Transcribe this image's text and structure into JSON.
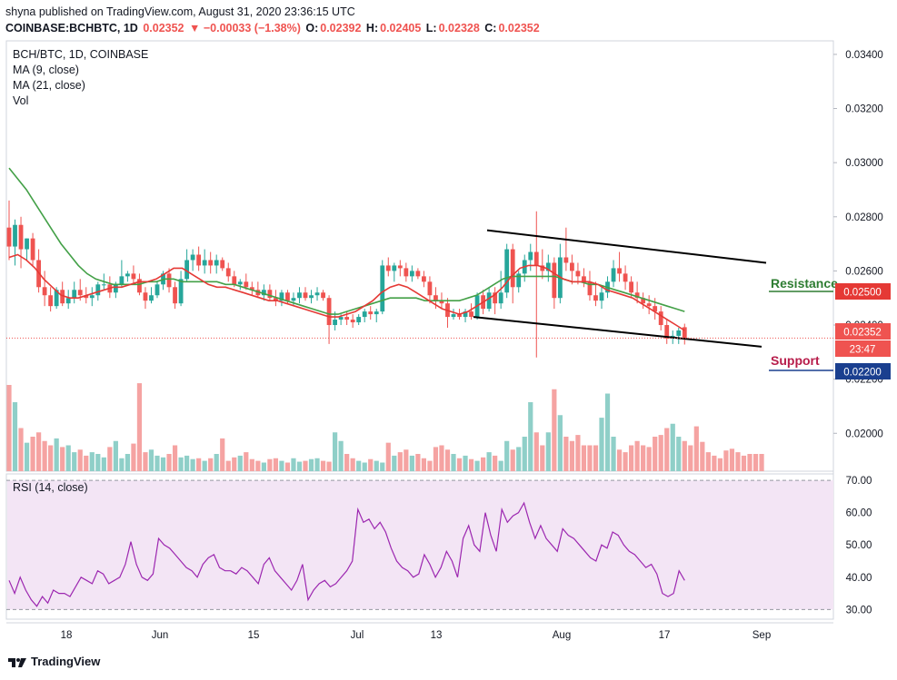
{
  "header": {
    "publish_line": "shyna published on TradingView.com, August 31, 2020 23:36:15 UTC",
    "symbol": "COINBASE:BCHBTC, 1D",
    "last": "0.02352",
    "change": "▼ −0.00033 (−1.38%)",
    "open_label": "O:",
    "open": "0.02392",
    "high_label": "H:",
    "high": "0.02405",
    "low_label": "L:",
    "low": "0.02328",
    "close_label": "C:",
    "close": "0.02352"
  },
  "legend": {
    "title": "BCH/BTC, 1D, COINBASE",
    "ma9": "MA (9, close)",
    "ma21": "MA (21, close)",
    "vol": "Vol",
    "rsi": "RSI (14, close)"
  },
  "annotations": {
    "resistance": "Resistance",
    "support": "Support",
    "resistance_price": "0.02500",
    "support_price": "0.02200",
    "last_price": "0.02352",
    "countdown": "23:47"
  },
  "footer": {
    "brand": "TradingView"
  },
  "colors": {
    "up": "#26a69a",
    "down": "#ef5350",
    "ma9": "#e53935",
    "ma21": "#43a047",
    "rsi_line": "#9c27b0",
    "rsi_band": "#f3e5f5",
    "resistance": "#2e7d32",
    "support": "#b71c4a",
    "resistance_tag": "#e53935",
    "support_tag": "#1a3f8f"
  },
  "chart_data": {
    "type": "candlestick",
    "x_ticks": [
      "18",
      "Jun",
      "15",
      "Jul",
      "13",
      "Aug",
      "17",
      "Sep"
    ],
    "price_ticks": [
      "0.03400",
      "0.03200",
      "0.03000",
      "0.02800",
      "0.02600",
      "0.02400",
      "0.02200",
      "0.02000"
    ],
    "price_range": [
      0.0186,
      0.0345
    ],
    "rsi_ticks": [
      "70.00",
      "60.00",
      "50.00",
      "40.00",
      "30.00"
    ],
    "rsi_range": [
      27,
      72
    ],
    "rsi_band": [
      30,
      70
    ],
    "candles_ohlc": [
      [
        0.0276,
        0.0286,
        0.0264,
        0.0269
      ],
      [
        0.0269,
        0.0279,
        0.0262,
        0.0277
      ],
      [
        0.0277,
        0.028,
        0.0261,
        0.0268
      ],
      [
        0.0268,
        0.0272,
        0.0264,
        0.0272
      ],
      [
        0.0272,
        0.0274,
        0.0262,
        0.0264
      ],
      [
        0.0264,
        0.0268,
        0.0252,
        0.0254
      ],
      [
        0.0254,
        0.026,
        0.0247,
        0.0251
      ],
      [
        0.0251,
        0.0254,
        0.0245,
        0.0247
      ],
      [
        0.0247,
        0.0254,
        0.0246,
        0.0253
      ],
      [
        0.0253,
        0.0256,
        0.0247,
        0.0248
      ],
      [
        0.0248,
        0.0253,
        0.0246,
        0.025
      ],
      [
        0.025,
        0.0256,
        0.0248,
        0.0253
      ],
      [
        0.0253,
        0.0257,
        0.0249,
        0.0251
      ],
      [
        0.0251,
        0.0254,
        0.0248,
        0.025
      ],
      [
        0.025,
        0.0254,
        0.0247,
        0.0251
      ],
      [
        0.0251,
        0.0256,
        0.0249,
        0.0255
      ],
      [
        0.0255,
        0.0259,
        0.0253,
        0.0255
      ],
      [
        0.0255,
        0.0258,
        0.025,
        0.0252
      ],
      [
        0.0252,
        0.0256,
        0.025,
        0.0255
      ],
      [
        0.0255,
        0.0264,
        0.0254,
        0.0258
      ],
      [
        0.0258,
        0.026,
        0.0256,
        0.0259
      ],
      [
        0.0259,
        0.0262,
        0.0255,
        0.0257
      ],
      [
        0.0257,
        0.0259,
        0.0251,
        0.0252
      ],
      [
        0.0252,
        0.0254,
        0.0246,
        0.0249
      ],
      [
        0.0249,
        0.0254,
        0.0248,
        0.0251
      ],
      [
        0.0251,
        0.0256,
        0.025,
        0.0255
      ],
      [
        0.0255,
        0.026,
        0.0253,
        0.0259
      ],
      [
        0.0259,
        0.0261,
        0.0252,
        0.0254
      ],
      [
        0.0254,
        0.0256,
        0.0246,
        0.0248
      ],
      [
        0.0248,
        0.026,
        0.0247,
        0.0257
      ],
      [
        0.0257,
        0.0268,
        0.0256,
        0.0264
      ],
      [
        0.0264,
        0.0268,
        0.026,
        0.0266
      ],
      [
        0.0266,
        0.0269,
        0.026,
        0.0262
      ],
      [
        0.0262,
        0.0268,
        0.0259,
        0.0264
      ],
      [
        0.0264,
        0.0267,
        0.0259,
        0.0262
      ],
      [
        0.0262,
        0.0266,
        0.0259,
        0.0264
      ],
      [
        0.0264,
        0.0265,
        0.026,
        0.0261
      ],
      [
        0.0261,
        0.0263,
        0.0256,
        0.0258
      ],
      [
        0.0258,
        0.026,
        0.0254,
        0.0255
      ],
      [
        0.0255,
        0.0257,
        0.0253,
        0.0256
      ],
      [
        0.0256,
        0.0259,
        0.0253,
        0.0254
      ],
      [
        0.0254,
        0.0256,
        0.0251,
        0.0253
      ],
      [
        0.0253,
        0.0256,
        0.025,
        0.0251
      ],
      [
        0.0251,
        0.0255,
        0.0249,
        0.0253
      ],
      [
        0.0253,
        0.0255,
        0.0249,
        0.025
      ],
      [
        0.025,
        0.0253,
        0.0247,
        0.0249
      ],
      [
        0.0249,
        0.0253,
        0.0247,
        0.0252
      ],
      [
        0.0252,
        0.0253,
        0.0248,
        0.0249
      ],
      [
        0.0249,
        0.0252,
        0.0247,
        0.025
      ],
      [
        0.025,
        0.0254,
        0.0248,
        0.0252
      ],
      [
        0.0252,
        0.0254,
        0.0249,
        0.025
      ],
      [
        0.025,
        0.0253,
        0.0248,
        0.0251
      ],
      [
        0.0251,
        0.0254,
        0.0249,
        0.0252
      ],
      [
        0.0252,
        0.0253,
        0.0249,
        0.025
      ],
      [
        0.025,
        0.0251,
        0.0233,
        0.024
      ],
      [
        0.024,
        0.0245,
        0.0238,
        0.0242
      ],
      [
        0.0242,
        0.0244,
        0.024,
        0.0243
      ],
      [
        0.0243,
        0.0245,
        0.024,
        0.0242
      ],
      [
        0.0242,
        0.0244,
        0.0239,
        0.0241
      ],
      [
        0.0241,
        0.0244,
        0.024,
        0.0243
      ],
      [
        0.0243,
        0.0246,
        0.0241,
        0.0245
      ],
      [
        0.0245,
        0.0247,
        0.0242,
        0.0244
      ],
      [
        0.0244,
        0.0246,
        0.0241,
        0.0245
      ],
      [
        0.0245,
        0.0264,
        0.0244,
        0.0262
      ],
      [
        0.0262,
        0.0265,
        0.0258,
        0.026
      ],
      [
        0.026,
        0.0263,
        0.0256,
        0.0262
      ],
      [
        0.0262,
        0.0264,
        0.0258,
        0.0261
      ],
      [
        0.0261,
        0.0263,
        0.0256,
        0.0258
      ],
      [
        0.0258,
        0.0262,
        0.0256,
        0.026
      ],
      [
        0.026,
        0.0261,
        0.0257,
        0.0258
      ],
      [
        0.0258,
        0.026,
        0.0254,
        0.0256
      ],
      [
        0.0256,
        0.0258,
        0.0248,
        0.0251
      ],
      [
        0.0251,
        0.0254,
        0.0246,
        0.0249
      ],
      [
        0.0249,
        0.0252,
        0.0246,
        0.0248
      ],
      [
        0.0248,
        0.025,
        0.0239,
        0.0243
      ],
      [
        0.0243,
        0.0246,
        0.0242,
        0.0244
      ],
      [
        0.0244,
        0.0246,
        0.0242,
        0.0243
      ],
      [
        0.0243,
        0.0246,
        0.0241,
        0.0245
      ],
      [
        0.0245,
        0.0248,
        0.0242,
        0.0243
      ],
      [
        0.0243,
        0.0252,
        0.0242,
        0.0251
      ],
      [
        0.0251,
        0.0253,
        0.0244,
        0.0246
      ],
      [
        0.0246,
        0.0254,
        0.0245,
        0.0252
      ],
      [
        0.0252,
        0.0254,
        0.0244,
        0.0248
      ],
      [
        0.0248,
        0.026,
        0.0246,
        0.0252
      ],
      [
        0.0252,
        0.027,
        0.025,
        0.0268
      ],
      [
        0.0268,
        0.027,
        0.0248,
        0.0254
      ],
      [
        0.0254,
        0.026,
        0.0252,
        0.0259
      ],
      [
        0.0259,
        0.0266,
        0.0256,
        0.0264
      ],
      [
        0.0264,
        0.027,
        0.026,
        0.0267
      ],
      [
        0.0267,
        0.0282,
        0.0228,
        0.0262
      ],
      [
        0.0262,
        0.0268,
        0.0257,
        0.026
      ],
      [
        0.026,
        0.0266,
        0.0256,
        0.0263
      ],
      [
        0.0263,
        0.0265,
        0.0246,
        0.025
      ],
      [
        0.025,
        0.027,
        0.0248,
        0.0265
      ],
      [
        0.0265,
        0.0276,
        0.026,
        0.0263
      ],
      [
        0.0263,
        0.0266,
        0.0255,
        0.026
      ],
      [
        0.026,
        0.0263,
        0.0255,
        0.0258
      ],
      [
        0.0258,
        0.0261,
        0.0254,
        0.0256
      ],
      [
        0.0256,
        0.026,
        0.0249,
        0.0251
      ],
      [
        0.0251,
        0.0256,
        0.0247,
        0.0249
      ],
      [
        0.0249,
        0.0254,
        0.0246,
        0.0252
      ],
      [
        0.0252,
        0.0258,
        0.025,
        0.0256
      ],
      [
        0.0256,
        0.0264,
        0.0254,
        0.0261
      ],
      [
        0.0261,
        0.0267,
        0.0256,
        0.0259
      ],
      [
        0.0259,
        0.0262,
        0.0253,
        0.0256
      ],
      [
        0.0256,
        0.0258,
        0.025,
        0.0252
      ],
      [
        0.0252,
        0.0256,
        0.0248,
        0.025
      ],
      [
        0.025,
        0.0252,
        0.0246,
        0.0248
      ],
      [
        0.0248,
        0.0251,
        0.0244,
        0.0247
      ],
      [
        0.0247,
        0.025,
        0.0242,
        0.0245
      ],
      [
        0.0245,
        0.0247,
        0.0238,
        0.024
      ],
      [
        0.024,
        0.0242,
        0.0233,
        0.0235
      ],
      [
        0.0235,
        0.0238,
        0.0233,
        0.0236
      ],
      [
        0.0236,
        0.0239,
        0.0233,
        0.0238
      ],
      [
        0.02392,
        0.02405,
        0.02328,
        0.02352
      ]
    ],
    "ma9": [
      0.0265,
      0.0266,
      0.0264,
      0.0261,
      0.0257,
      0.0254,
      0.0251,
      0.025,
      0.025,
      0.0251,
      0.0252,
      0.0253,
      0.0254,
      0.0254,
      0.0255,
      0.0256,
      0.0256,
      0.0257,
      0.0259,
      0.0261,
      0.0261,
      0.0259,
      0.0257,
      0.0255,
      0.0254,
      0.0254,
      0.0253,
      0.0252,
      0.0251,
      0.025,
      0.0249,
      0.0249,
      0.0248,
      0.0247,
      0.0246,
      0.0245,
      0.0244,
      0.0243,
      0.0243,
      0.0244,
      0.0245,
      0.0247,
      0.0249,
      0.0252,
      0.0254,
      0.0255,
      0.0254,
      0.0252,
      0.025,
      0.0248,
      0.0246,
      0.0245,
      0.0244,
      0.0245,
      0.0247,
      0.0249,
      0.0251,
      0.0254,
      0.0258,
      0.0261,
      0.0262,
      0.0262,
      0.0261,
      0.0259,
      0.0257,
      0.0256,
      0.0256,
      0.0256,
      0.0255,
      0.0253,
      0.0252,
      0.0251,
      0.025,
      0.0248,
      0.0246,
      0.0244,
      0.0242,
      0.024,
      0.0238
    ],
    "ma21": [
      0.0298,
      0.0294,
      0.029,
      0.0285,
      0.028,
      0.0275,
      0.027,
      0.0266,
      0.0262,
      0.0259,
      0.0257,
      0.0256,
      0.0255,
      0.0255,
      0.0255,
      0.0255,
      0.0256,
      0.0256,
      0.0257,
      0.0257,
      0.0256,
      0.0256,
      0.0256,
      0.0256,
      0.0256,
      0.0255,
      0.0255,
      0.0254,
      0.0253,
      0.0252,
      0.0251,
      0.025,
      0.0249,
      0.0248,
      0.0247,
      0.0246,
      0.0245,
      0.0244,
      0.0244,
      0.0245,
      0.0246,
      0.0247,
      0.0248,
      0.0249,
      0.025,
      0.025,
      0.025,
      0.025,
      0.0249,
      0.0249,
      0.0249,
      0.0249,
      0.0249,
      0.025,
      0.0251,
      0.0253,
      0.0255,
      0.0257,
      0.0258,
      0.0258,
      0.0258,
      0.0258,
      0.0258,
      0.0258,
      0.0257,
      0.0256,
      0.0256,
      0.0255,
      0.0255,
      0.0254,
      0.0253,
      0.0252,
      0.0251,
      0.025,
      0.0249,
      0.0248,
      0.0247,
      0.0246,
      0.0245
    ],
    "volume": [
      1.0,
      0.8,
      0.5,
      0.33,
      0.4,
      0.45,
      0.35,
      0.3,
      0.38,
      0.28,
      0.3,
      0.22,
      0.25,
      0.18,
      0.22,
      0.2,
      0.16,
      0.28,
      0.35,
      0.15,
      0.2,
      0.32,
      1.02,
      0.22,
      0.25,
      0.18,
      0.16,
      0.2,
      0.3,
      0.16,
      0.18,
      0.14,
      0.15,
      0.12,
      0.15,
      0.2,
      0.38,
      0.12,
      0.16,
      0.18,
      0.22,
      0.14,
      0.12,
      0.1,
      0.14,
      0.15,
      0.12,
      0.1,
      0.15,
      0.11,
      0.12,
      0.14,
      0.15,
      0.12,
      0.11,
      0.45,
      0.35,
      0.2,
      0.15,
      0.12,
      0.1,
      0.14,
      0.12,
      0.1,
      0.33,
      0.18,
      0.22,
      0.25,
      0.18,
      0.2,
      0.15,
      0.12,
      0.28,
      0.3,
      0.25,
      0.2,
      0.15,
      0.18,
      0.14,
      0.12,
      0.16,
      0.22,
      0.18,
      0.12,
      0.35,
      0.25,
      0.28,
      0.4,
      0.8,
      0.45,
      0.3,
      0.45,
      0.95,
      0.65,
      0.4,
      0.35,
      0.42,
      0.3,
      0.3,
      0.3,
      0.62,
      0.9,
      0.4,
      0.25,
      0.22,
      0.3,
      0.35,
      0.3,
      0.28,
      0.4,
      0.42,
      0.5,
      0.55,
      0.4,
      0.35,
      0.3,
      0.52,
      0.34,
      0.22,
      0.18,
      0.15,
      0.24,
      0.26,
      0.22,
      0.18,
      0.2,
      0.2,
      0.2
    ],
    "rsi": [
      39,
      35,
      40,
      36,
      33,
      31,
      34,
      32,
      36,
      35,
      35,
      34,
      37,
      40,
      39,
      38,
      42,
      41,
      38,
      39,
      40,
      44,
      51,
      44,
      40,
      39,
      41,
      52,
      50,
      49,
      47,
      45,
      43,
      42,
      40,
      44,
      46,
      47,
      43,
      42,
      42,
      41,
      43,
      42,
      40,
      38,
      44,
      46,
      42,
      40,
      38,
      36,
      39,
      44,
      33,
      36,
      38,
      39,
      37,
      38,
      40,
      42,
      45,
      61,
      57,
      58,
      55,
      57,
      54,
      49,
      45,
      43,
      42,
      40,
      41,
      47,
      44,
      40,
      43,
      48,
      45,
      40,
      52,
      56,
      50,
      48,
      60,
      53,
      48,
      61,
      57,
      59,
      60,
      63,
      57,
      52,
      56,
      52,
      50,
      48,
      55,
      53,
      52,
      50,
      48,
      46,
      45,
      50,
      49,
      54,
      53,
      50,
      48,
      47,
      45,
      43,
      44,
      41,
      35,
      34,
      35,
      42,
      39
    ],
    "channel_upper": [
      [
        0.0275,
        0
      ],
      [
        0.0263,
        1
      ]
    ],
    "channel_lower": [
      [
        0.0243,
        0
      ],
      [
        0.0232,
        1
      ]
    ]
  }
}
